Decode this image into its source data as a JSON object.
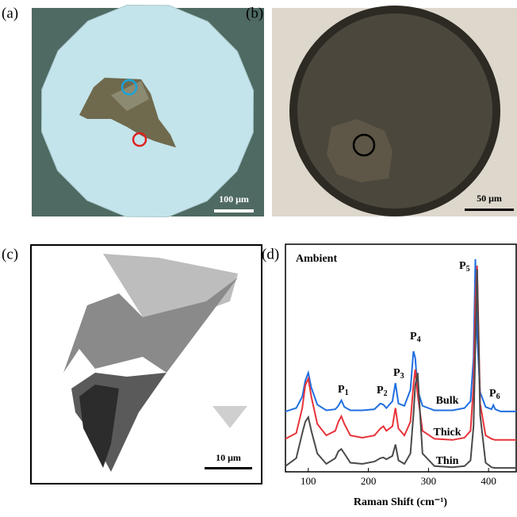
{
  "panels": [
    {
      "label": "(a)",
      "scale_bar": "100 μm"
    },
    {
      "label": "(b)",
      "scale_bar": "50 μm"
    },
    {
      "label": "(c)",
      "scale_bar": "10 μm"
    },
    {
      "label": "(d)"
    }
  ],
  "chart_data": {
    "type": "line",
    "annotation": "Ambient",
    "x_label": "Raman Shift (cm⁻¹)",
    "x": [
      62,
      80,
      90,
      95,
      100,
      105,
      115,
      130,
      145,
      150,
      155,
      160,
      170,
      190,
      210,
      220,
      225,
      230,
      240,
      245,
      250,
      260,
      270,
      275,
      278,
      282,
      290,
      310,
      340,
      360,
      370,
      375,
      378,
      381,
      386,
      395,
      405,
      408,
      411,
      420,
      446
    ],
    "series": [
      {
        "name": "Bulk",
        "color": "#1f6fe0",
        "values": [
          26.5,
          28,
          33,
          40,
          43.5,
          37,
          29.5,
          27,
          27.5,
          29,
          31.4,
          28.5,
          27,
          27,
          27.5,
          30,
          29.5,
          28,
          31,
          39,
          30,
          29,
          36,
          53,
          50,
          36,
          29,
          27,
          27,
          28,
          31,
          50,
          93.4,
          60,
          35,
          28.5,
          27.5,
          29.3,
          27.5,
          26.5,
          26.5
        ]
      },
      {
        "name": "Thick",
        "color": "#e8333a",
        "values": [
          14.5,
          17,
          28,
          38,
          41,
          33,
          21,
          16,
          18,
          22,
          24.4,
          21,
          16,
          15,
          16,
          19,
          20,
          18,
          20,
          28,
          19,
          16,
          22,
          38,
          45,
          34,
          18,
          14.5,
          14,
          15,
          18,
          38,
          75,
          90.6,
          30,
          16,
          14.5,
          14.2,
          14,
          14,
          14
        ]
      },
      {
        "name": "Thin",
        "color": "#4a4a4a",
        "values": [
          2.5,
          6,
          17,
          22,
          24,
          18,
          8,
          3.5,
          6,
          9,
          10,
          8,
          4,
          3.5,
          4.5,
          6,
          6.3,
          5.5,
          7,
          12,
          5,
          3.5,
          8,
          25,
          38,
          43.5,
          8,
          2.5,
          2,
          2.5,
          5,
          20,
          55,
          89,
          25,
          4,
          2,
          1.8,
          1.7,
          1.7,
          1.7
        ]
      }
    ],
    "peak_labels": [
      {
        "base": "P",
        "sub": "1"
      },
      {
        "base": "P",
        "sub": "2"
      },
      {
        "base": "P",
        "sub": "3"
      },
      {
        "base": "P",
        "sub": "4"
      },
      {
        "base": "P",
        "sub": "5"
      },
      {
        "base": "P",
        "sub": "6"
      }
    ],
    "xlim": [
      62,
      446
    ],
    "xticks": [
      100,
      200,
      300,
      400
    ],
    "ylim": [
      0,
      100
    ]
  }
}
